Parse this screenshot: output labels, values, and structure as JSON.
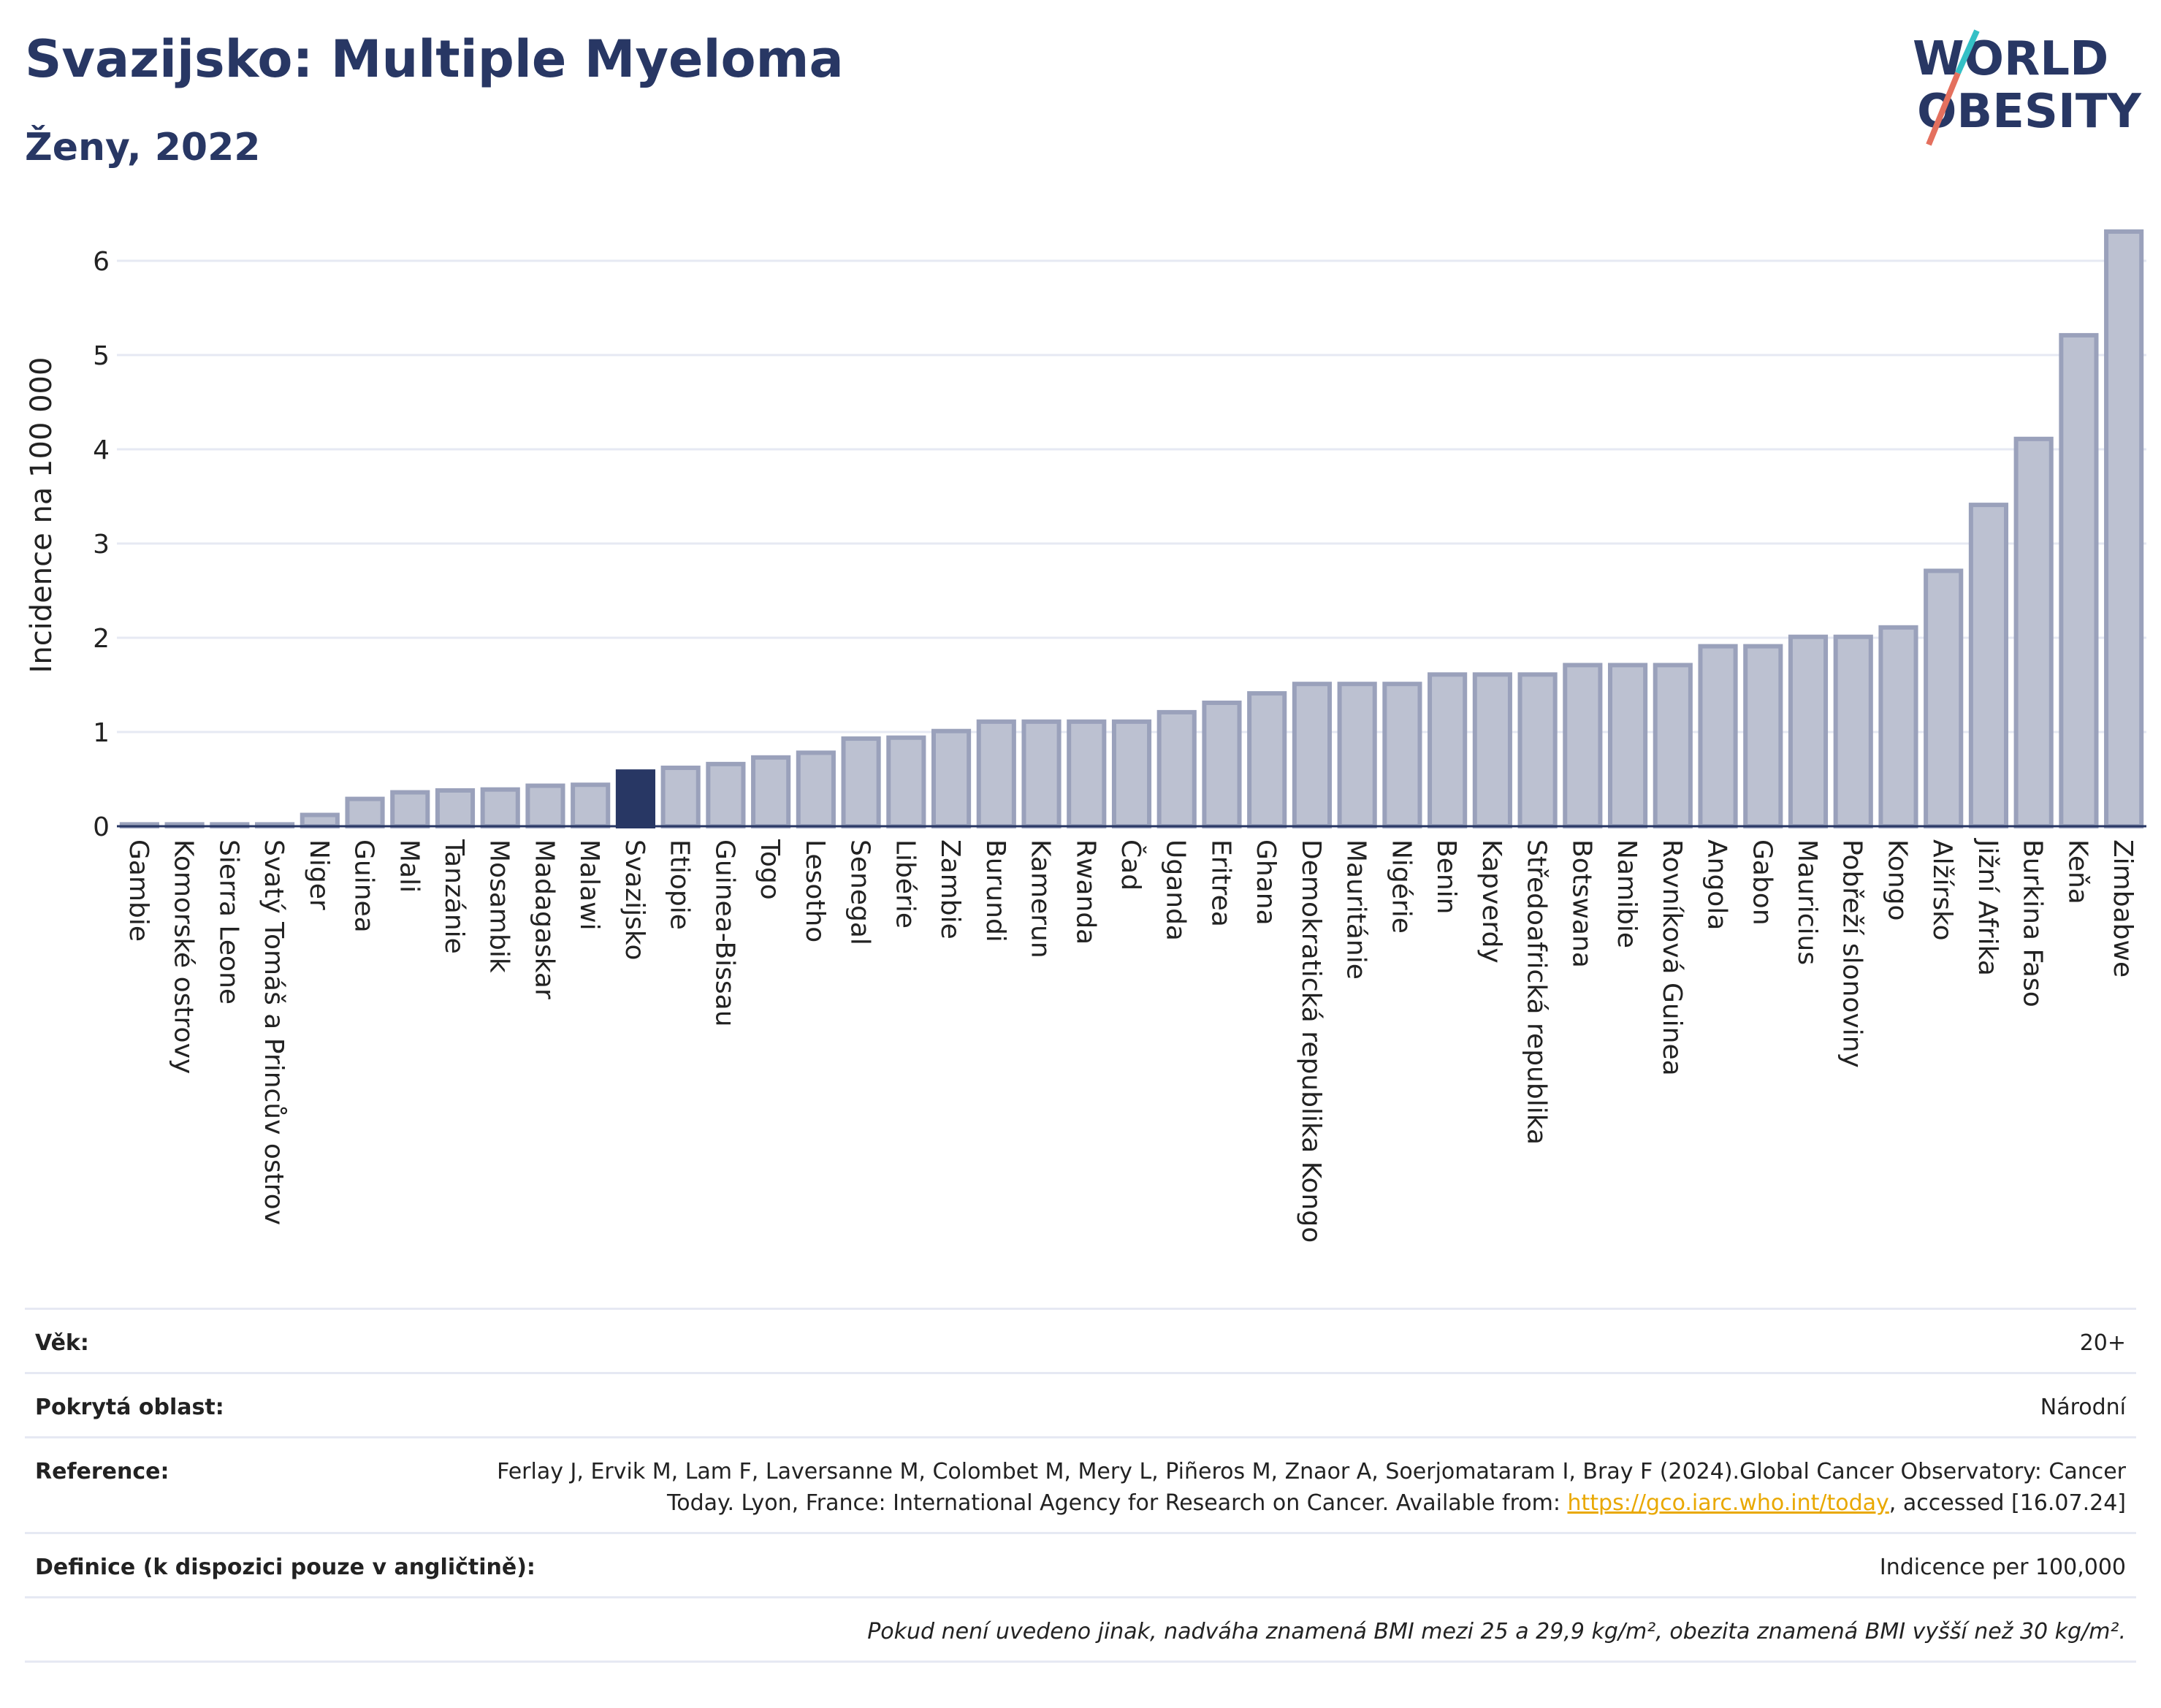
{
  "header": {
    "title": "Svazijsko: Multiple Myeloma",
    "subtitle": "Ženy, 2022"
  },
  "logo": {
    "line1": "WORLD",
    "line2": "OBESITY"
  },
  "chart_data": {
    "type": "bar",
    "ylabel": "Incidence na 100 000",
    "xlabel": "",
    "ylim": [
      0,
      6.5
    ],
    "yticks": [
      0,
      1,
      2,
      3,
      4,
      5,
      6
    ],
    "grid": true,
    "highlight": "Svazijsko",
    "highlight_color": "#283764",
    "bar_color": "#bcc1d1",
    "bar_edge_color": "#9aa1bb",
    "categories": [
      "Gambie",
      "Komorské ostrovy",
      "Sierra Leone",
      "Svatý Tomáš a Princův ostrov",
      "Niger",
      "Guinea",
      "Mali",
      "Tanzánie",
      "Mosambik",
      "Madagaskar",
      "Malawi",
      "Svazijsko",
      "Etiopie",
      "Guinea-Bissau",
      "Togo",
      "Lesotho",
      "Senegal",
      "Libérie",
      "Zambie",
      "Burundi",
      "Kamerun",
      "Rwanda",
      "Čad",
      "Uganda",
      "Eritrea",
      "Ghana",
      "Demokratická republika Kongo",
      "Mauritánie",
      "Nigérie",
      "Benin",
      "Kapverdy",
      "Středoafrická republika",
      "Botswana",
      "Namibie",
      "Rovníková Guinea",
      "Angola",
      "Gabon",
      "Mauricius",
      "Pobřeží slonoviny",
      "Kongo",
      "Alžírsko",
      "Jižní Afrika",
      "Burkina Faso",
      "Keňa",
      "Zimbabwe"
    ],
    "values": [
      0.02,
      0.02,
      0.02,
      0.02,
      0.12,
      0.29,
      0.36,
      0.38,
      0.39,
      0.43,
      0.44,
      0.58,
      0.62,
      0.66,
      0.73,
      0.78,
      0.93,
      0.94,
      1.01,
      1.11,
      1.11,
      1.11,
      1.11,
      1.21,
      1.31,
      1.41,
      1.51,
      1.51,
      1.51,
      1.61,
      1.61,
      1.61,
      1.71,
      1.71,
      1.71,
      1.91,
      1.91,
      2.01,
      2.01,
      2.11,
      2.71,
      3.41,
      4.11,
      5.21,
      6.31
    ]
  },
  "meta": {
    "age_label": "Věk:",
    "age_value": "20+",
    "area_label": "Pokrytá oblast:",
    "area_value": "Národní",
    "ref_label": "Reference:",
    "ref_text": "Ferlay J, Ervik M, Lam F, Laversanne M, Colombet M, Mery L, Piñeros M, Znaor A, Soerjomataram I, Bray F (2024).Global Cancer Observatory: Cancer Today. Lyon, France: International Agency for Research on Cancer. Available from:",
    "ref_link": "https://gco.iarc.who.int/today",
    "ref_after": ", accessed [16.07.24]",
    "def_label": "Definice (k dispozici pouze v angličtině):",
    "def_value": "Indicence per 100,000",
    "note": "Pokud není uvedeno jinak, nadváha znamená BMI mezi 25 a 29,9 kg/m², obezita znamená BMI vyšší než 30 kg/m²."
  }
}
